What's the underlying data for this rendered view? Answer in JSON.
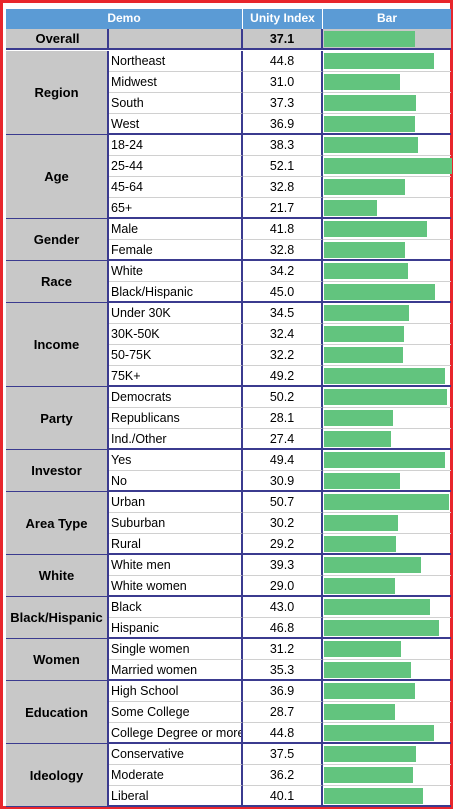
{
  "columns": {
    "demo": "Demo",
    "index": "Unity Index",
    "bar": "Bar"
  },
  "overall": {
    "label": "Overall",
    "value": 37.1
  },
  "colors": {
    "header_bg": "#5b9bd5",
    "bar": "#62c47e",
    "group_bg": "#c8c8c8",
    "frame": "#e8262c"
  },
  "chart_data": {
    "type": "bar",
    "title": "",
    "xlabel": "",
    "ylabel": "Unity Index",
    "groups": [
      {
        "name": "Region",
        "rows": [
          {
            "label": "Northeast",
            "value": 44.8
          },
          {
            "label": "Midwest",
            "value": 31.0
          },
          {
            "label": "South",
            "value": 37.3
          },
          {
            "label": "West",
            "value": 36.9
          }
        ]
      },
      {
        "name": "Age",
        "rows": [
          {
            "label": "18-24",
            "value": 38.3
          },
          {
            "label": "25-44",
            "value": 52.1
          },
          {
            "label": "45-64",
            "value": 32.8
          },
          {
            "label": "65+",
            "value": 21.7
          }
        ]
      },
      {
        "name": "Gender",
        "rows": [
          {
            "label": "Male",
            "value": 41.8
          },
          {
            "label": "Female",
            "value": 32.8
          }
        ]
      },
      {
        "name": "Race",
        "rows": [
          {
            "label": "White",
            "value": 34.2
          },
          {
            "label": "Black/Hispanic",
            "value": 45.0
          }
        ]
      },
      {
        "name": "Income",
        "rows": [
          {
            "label": "Under 30K",
            "value": 34.5
          },
          {
            "label": "30K-50K",
            "value": 32.4
          },
          {
            "label": "50-75K",
            "value": 32.2
          },
          {
            "label": "75K+",
            "value": 49.2
          }
        ]
      },
      {
        "name": "Party",
        "rows": [
          {
            "label": "Democrats",
            "value": 50.2
          },
          {
            "label": "Republicans",
            "value": 28.1
          },
          {
            "label": "Ind./Other",
            "value": 27.4
          }
        ]
      },
      {
        "name": "Investor",
        "rows": [
          {
            "label": "Yes",
            "value": 49.4
          },
          {
            "label": "No",
            "value": 30.9
          }
        ]
      },
      {
        "name": "Area Type",
        "rows": [
          {
            "label": "Urban",
            "value": 50.7
          },
          {
            "label": "Suburban",
            "value": 30.2
          },
          {
            "label": "Rural",
            "value": 29.2
          }
        ]
      },
      {
        "name": "White",
        "rows": [
          {
            "label": "White men",
            "value": 39.3
          },
          {
            "label": "White women",
            "value": 29.0
          }
        ]
      },
      {
        "name": "Black/Hispanic",
        "rows": [
          {
            "label": "Black",
            "value": 43.0
          },
          {
            "label": "Hispanic",
            "value": 46.8
          }
        ]
      },
      {
        "name": "Women",
        "rows": [
          {
            "label": "Single women",
            "value": 31.2
          },
          {
            "label": "Married women",
            "value": 35.3
          }
        ]
      },
      {
        "name": "Education",
        "rows": [
          {
            "label": "High School",
            "value": 36.9
          },
          {
            "label": "Some College",
            "value": 28.7
          },
          {
            "label": "College Degree or more",
            "value": 44.8
          }
        ]
      },
      {
        "name": "Ideology",
        "rows": [
          {
            "label": "Conservative",
            "value": 37.5
          },
          {
            "label": "Moderate",
            "value": 36.2
          },
          {
            "label": "Liberal",
            "value": 40.1
          }
        ]
      }
    ]
  }
}
